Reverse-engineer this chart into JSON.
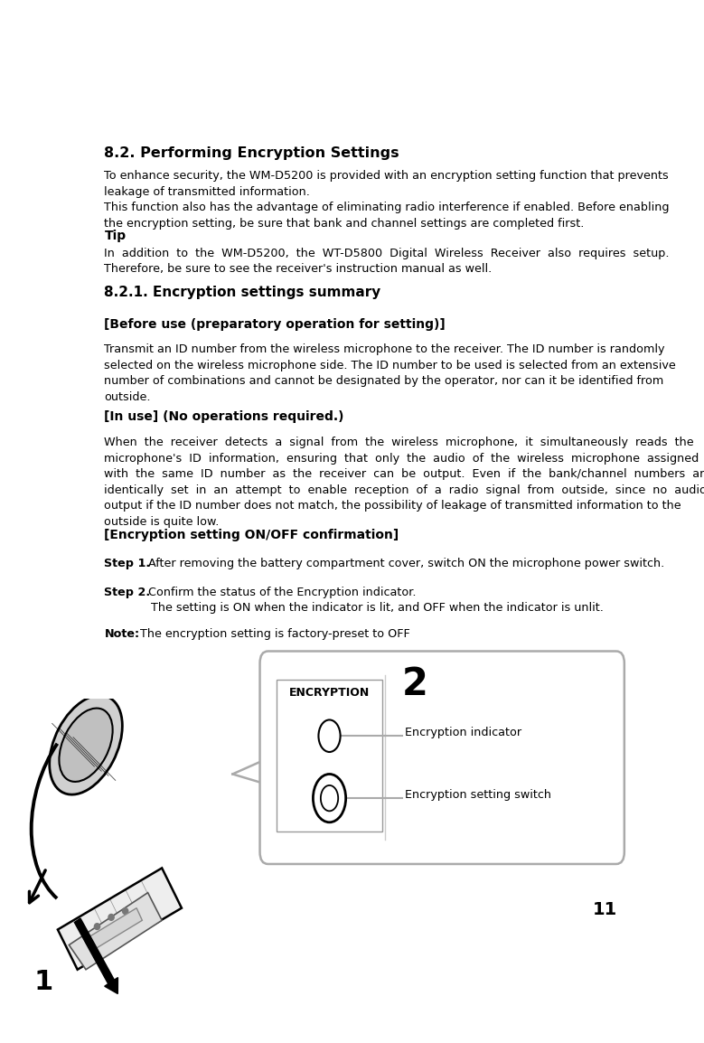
{
  "title": "8.2. Performing Encryption Settings",
  "bg_color": "#ffffff",
  "text_color": "#000000",
  "page_number": "11",
  "ml": 0.03,
  "para1": "To enhance security, the WM-D5200 is provided with an encryption setting function that prevents\nleakage of transmitted information.\nThis function also has the advantage of eliminating radio interference if enabled. Before enabling\nthe encryption setting, be sure that bank and channel settings are completed first.",
  "tip_header": "Tip",
  "tip_body": "In  addition  to  the  WM-D5200,  the  WT-D5800  Digital  Wireless  Receiver  also  requires  setup.\nTherefore, be sure to see the receiver's instruction manual as well.",
  "section_header": "8.2.1. Encryption settings summary",
  "before_header": "[Before use (preparatory operation for setting)]",
  "before_body": "Transmit an ID number from the wireless microphone to the receiver. The ID number is randomly\nselected on the wireless microphone side. The ID number to be used is selected from an extensive\nnumber of combinations and cannot be designated by the operator, nor can it be identified from\noutside.",
  "inuse_header": "[In use] (No operations required.)",
  "inuse_body": "When  the  receiver  detects  a  signal  from  the  wireless  microphone,  it  simultaneously  reads  the\nmicrophone's  ID  information,  ensuring  that  only  the  audio  of  the  wireless  microphone  assigned\nwith  the  same  ID  number  as  the  receiver  can  be  output.  Even  if  the  bank/channel  numbers  are\nidentically  set  in  an  attempt  to  enable  reception  of  a  radio  signal  from  outside,  since  no  audio  is\noutput if the ID number does not match, the possibility of leakage of transmitted information to the\noutside is quite low.",
  "enc_header": "[Encryption setting ON/OFF confirmation]",
  "step1_bold": "Step 1.",
  "step1_normal": " After removing the battery compartment cover, switch ON the microphone power switch.",
  "step2_bold": "Step 2.",
  "step2_normal": " Confirm the status of the Encryption indicator.",
  "step2_cont": "The setting is ON when the indicator is lit, and OFF when the indicator is unlit.",
  "note_bold": "Note:",
  "note_normal": " The encryption setting is factory-preset to OFF",
  "enc_label": "ENCRYPTION",
  "ind_label": "Encryption indicator",
  "sw_label": "Encryption setting switch",
  "num2": "2",
  "num1": "1",
  "box_color": "#aaaaaa",
  "line_color": "#aaaaaa",
  "mic_line_color": "#aaaaaa"
}
